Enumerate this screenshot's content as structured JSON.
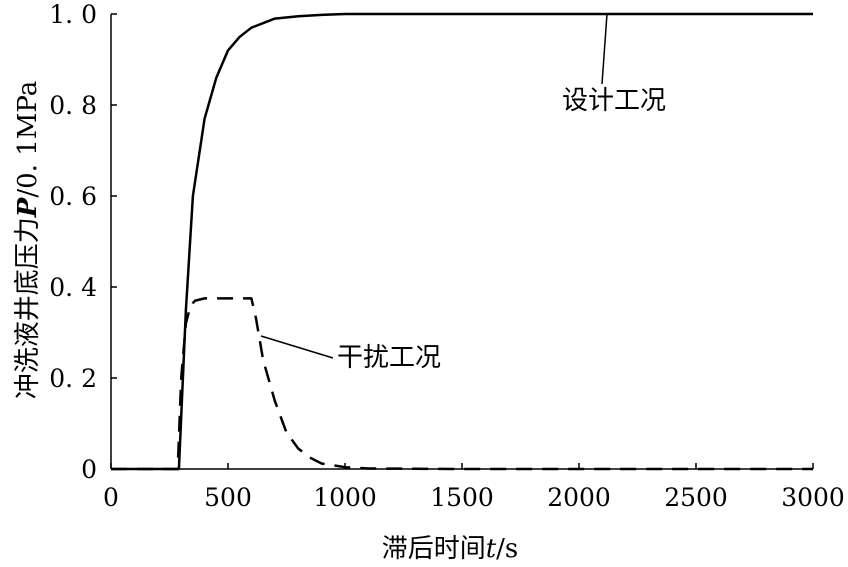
{
  "chart_data": {
    "type": "line",
    "xlabel": "滞后时间t/s",
    "xlabel_parts": {
      "pre": "滞后时间",
      "var": "t",
      "post": "/s"
    },
    "ylabel": "冲洗液井底压力P/0.1MPa",
    "ylabel_parts": {
      "pre": "冲洗液井底压力",
      "var": "P",
      "post": "/0. 1MPa"
    },
    "xlim": [
      0,
      3000
    ],
    "ylim": [
      0,
      1.0
    ],
    "x_ticks": [
      0,
      500,
      1000,
      1500,
      2000,
      2500,
      3000
    ],
    "x_tick_labels": [
      "0",
      "500",
      "1000",
      "1500",
      "2000",
      "2500",
      "3000"
    ],
    "y_ticks": [
      0,
      0.2,
      0.4,
      0.6,
      0.8,
      1.0
    ],
    "y_tick_labels": [
      "0",
      "0. 2",
      "0. 4",
      "0. 6",
      "0. 8",
      "1. 0"
    ],
    "grid": false,
    "legend": "none",
    "series": [
      {
        "name": "设计工况",
        "style": "solid",
        "color": "#000000",
        "x": [
          0,
          200,
          290,
          320,
          350,
          400,
          450,
          500,
          550,
          600,
          700,
          800,
          900,
          1000,
          1500,
          2000,
          2500,
          3000
        ],
        "y": [
          0,
          0,
          0,
          0.35,
          0.6,
          0.77,
          0.86,
          0.92,
          0.95,
          0.97,
          0.99,
          0.995,
          0.998,
          1.0,
          1.0,
          1.0,
          1.0,
          1.0
        ]
      },
      {
        "name": "干扰工况",
        "style": "dashed",
        "color": "#000000",
        "x": [
          0,
          200,
          285,
          300,
          320,
          340,
          360,
          400,
          450,
          500,
          550,
          600,
          620,
          650,
          700,
          750,
          800,
          850,
          900,
          1000,
          1100,
          1500,
          2000,
          2500,
          3000
        ],
        "y": [
          0,
          0,
          0,
          0.2,
          0.32,
          0.36,
          0.37,
          0.375,
          0.375,
          0.375,
          0.375,
          0.375,
          0.33,
          0.24,
          0.15,
          0.08,
          0.045,
          0.025,
          0.012,
          0.004,
          0.001,
          0,
          0,
          0,
          0
        ]
      }
    ],
    "annotations": [
      {
        "text": "设计工况",
        "series": 0
      },
      {
        "text": "干扰工况",
        "series": 1
      }
    ]
  }
}
